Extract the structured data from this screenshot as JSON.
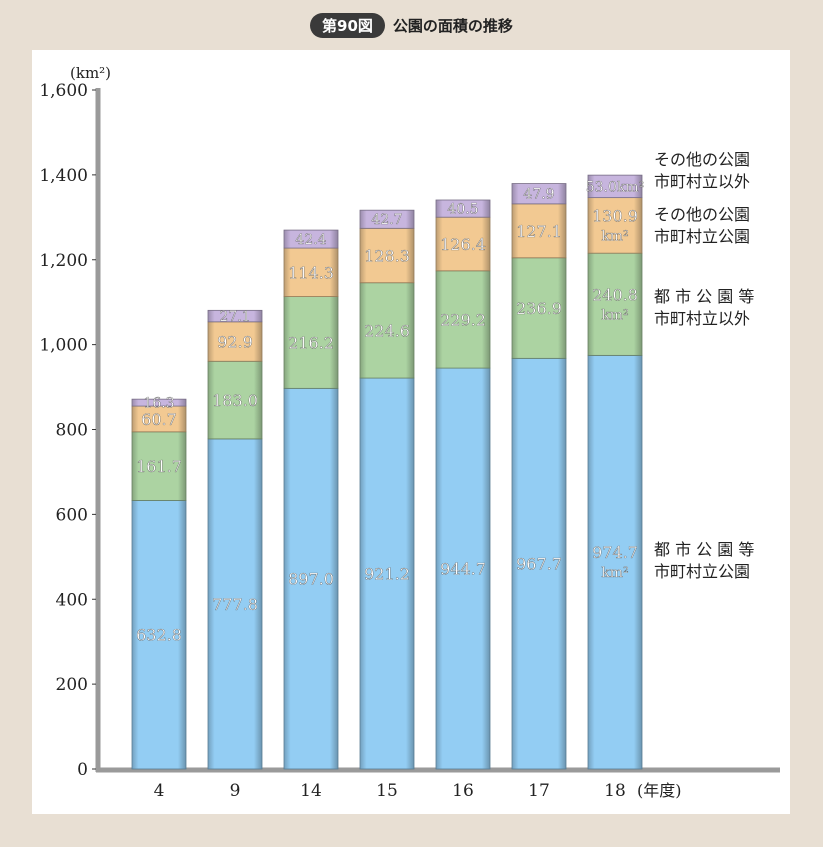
{
  "header": {
    "figure_number": "第90図",
    "title": "公園の面積の推移"
  },
  "colors": {
    "city_park": "#93cdf3",
    "city_park_other": "#acd3a2",
    "other_park": "#f2c992",
    "other_park_other": "#c7b5de",
    "axis": "#9a9a9a"
  },
  "chart_data": {
    "type": "bar",
    "stacked": true,
    "title": "公園の面積の推移",
    "ylabel": "(km²)",
    "xlabel": "(年度)",
    "ylim": [
      0,
      1600
    ],
    "yticks": [
      0,
      200,
      400,
      600,
      800,
      1000,
      1200,
      1400,
      1600
    ],
    "ytick_labels": [
      "0",
      "200",
      "400",
      "600",
      "800",
      "1,000",
      "1,200",
      "1,400",
      "1,600"
    ],
    "categories": [
      "4",
      "9",
      "14",
      "15",
      "16",
      "17",
      "18"
    ],
    "series": [
      {
        "key": "city_park",
        "legend": [
          "都 市 公 園 等",
          "市町村立公園"
        ],
        "values": [
          632.8,
          777.8,
          897.0,
          921.2,
          944.7,
          967.7,
          974.7
        ],
        "labels": [
          "632.8",
          "777.8",
          "897.0",
          "921.2",
          "944.7",
          "967.7",
          "974.7"
        ]
      },
      {
        "key": "city_park_other",
        "legend": [
          "都 市 公 園 等",
          "市町村立以外"
        ],
        "values": [
          161.7,
          183.0,
          216.2,
          224.6,
          229.2,
          236.9,
          240.8
        ],
        "labels": [
          "161.7",
          "183.0",
          "216.2",
          "224.6",
          "229.2",
          "236.9",
          "240.8"
        ]
      },
      {
        "key": "other_park",
        "legend": [
          "その他の公園",
          "市町村立公園"
        ],
        "values": [
          60.7,
          92.9,
          114.3,
          128.3,
          126.4,
          127.1,
          130.9
        ],
        "labels": [
          "60.7",
          "92.9",
          "114.3",
          "128.3",
          "126.4",
          "127.1",
          "130.9"
        ]
      },
      {
        "key": "other_park_other",
        "legend": [
          "その他の公園",
          "市町村立以外"
        ],
        "values": [
          16.3,
          27.1,
          42.4,
          42.7,
          40.5,
          47.9,
          53.0
        ],
        "labels": [
          "16.3",
          "27.1",
          "42.4",
          "42.7",
          "40.5",
          "47.9",
          "53.0km²"
        ]
      }
    ],
    "unit_label": "km²",
    "grid": false,
    "legend_position": "right, beside last bar"
  }
}
